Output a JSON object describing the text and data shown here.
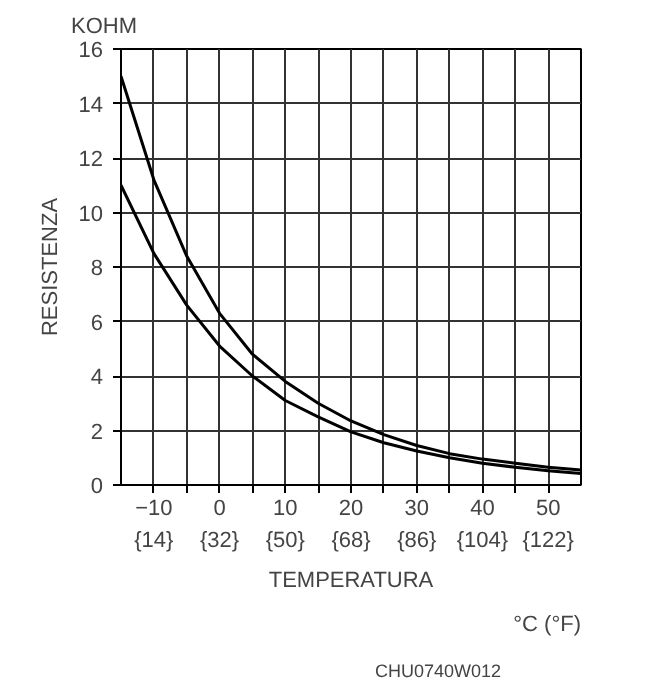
{
  "chart_data": {
    "type": "line",
    "xlabel": "TEMPERATURA",
    "ylabel": "RESISTENZA",
    "annotations": [
      "KOHM",
      "°C (°F)",
      "CHU0740W012"
    ],
    "x": [
      -15,
      -10,
      -5,
      0,
      5,
      10,
      15,
      20,
      25,
      30,
      35,
      40,
      45,
      50,
      55
    ],
    "series": [
      {
        "color": "#000000",
        "values": [
          15,
          11.2,
          8.4,
          6.3,
          4.8,
          3.8,
          3.0,
          2.35,
          1.85,
          1.45,
          1.15,
          0.95,
          0.8,
          0.65,
          0.55
        ]
      },
      {
        "color": "#000000",
        "values": [
          11,
          8.5,
          6.6,
          5.1,
          4.0,
          3.1,
          2.5,
          1.95,
          1.55,
          1.25,
          1.0,
          0.8,
          0.65,
          0.52,
          0.42
        ]
      }
    ],
    "xlim": [
      -15,
      55
    ],
    "ylim": [
      0,
      16
    ],
    "xticks": [
      -10,
      {
        "value": -5,
        "label": null
      },
      0,
      {
        "value": 5,
        "label": null
      },
      10,
      {
        "value": 15,
        "label": null
      },
      20,
      {
        "value": 25,
        "label": null
      },
      30,
      {
        "value": 35,
        "label": null
      },
      40,
      {
        "value": 45,
        "label": null
      },
      50
    ],
    "x2lim": [
      5,
      131
    ],
    "x2ticks": [
      {
        "value": 14,
        "label": "{14}"
      },
      {
        "value": 32,
        "label": "{32}"
      },
      {
        "value": 50,
        "label": "{50}"
      },
      {
        "value": 68,
        "label": "{68}"
      },
      {
        "value": 86,
        "label": "{86}"
      },
      {
        "value": 104,
        "label": "{104}"
      },
      {
        "value": 122,
        "label": "{122}"
      }
    ],
    "yticks": [
      0,
      2,
      4,
      6,
      8,
      10,
      12,
      14,
      16
    ],
    "grid": true,
    "marker": "none",
    "line_style": "solid"
  }
}
